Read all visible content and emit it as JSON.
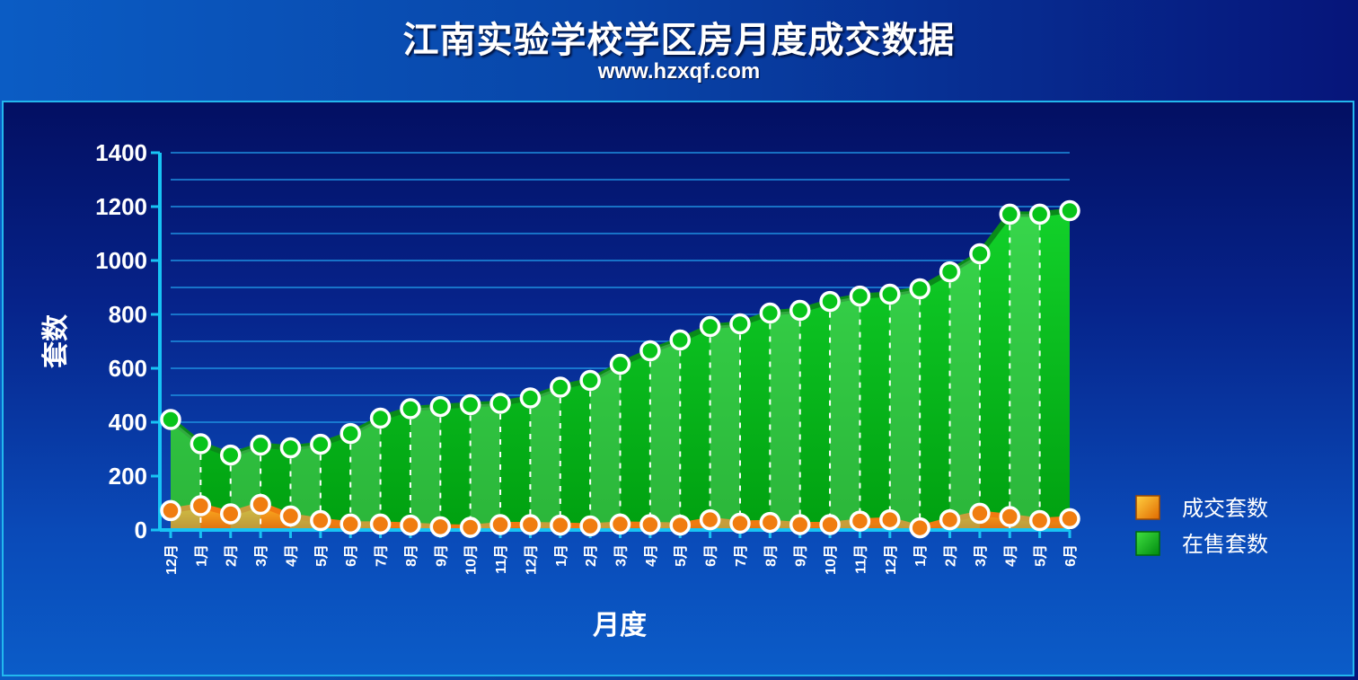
{
  "header": {
    "title": "江南实验学校学区房月度成交数据",
    "subtitle": "www.hzxqf.com"
  },
  "chart_data": {
    "type": "area",
    "title": "江南实验学校学区房月度成交数据",
    "subtitle": "www.hzxqf.com",
    "xlabel": "月度",
    "ylabel": "套数",
    "ylim": [
      0,
      1400
    ],
    "yticks": [
      0,
      200,
      400,
      600,
      800,
      1000,
      1200,
      1400
    ],
    "grid": true,
    "legend_position": "right",
    "categories": [
      "12月",
      "1月",
      "2月",
      "3月",
      "4月",
      "5月",
      "6月",
      "7月",
      "8月",
      "9月",
      "10月",
      "11月",
      "12月",
      "1月",
      "2月",
      "3月",
      "4月",
      "5月",
      "6月",
      "7月",
      "8月",
      "9月",
      "10月",
      "11月",
      "12月",
      "1月",
      "2月",
      "3月",
      "4月",
      "5月",
      "6月"
    ],
    "series": [
      {
        "name": "成交套数",
        "color": "#f07d10",
        "values": [
          72,
          90,
          60,
          95,
          52,
          35,
          22,
          22,
          18,
          12,
          10,
          20,
          20,
          18,
          15,
          22,
          20,
          18,
          38,
          25,
          28,
          20,
          20,
          33,
          38,
          8,
          38,
          62,
          50,
          35,
          42
        ]
      },
      {
        "name": "在售套数",
        "color": "#08c41a",
        "values": [
          410,
          320,
          278,
          315,
          305,
          318,
          358,
          415,
          450,
          458,
          465,
          470,
          490,
          530,
          555,
          615,
          665,
          705,
          755,
          765,
          805,
          815,
          848,
          868,
          875,
          895,
          958,
          1025,
          1172,
          1172,
          1185
        ]
      }
    ]
  }
}
